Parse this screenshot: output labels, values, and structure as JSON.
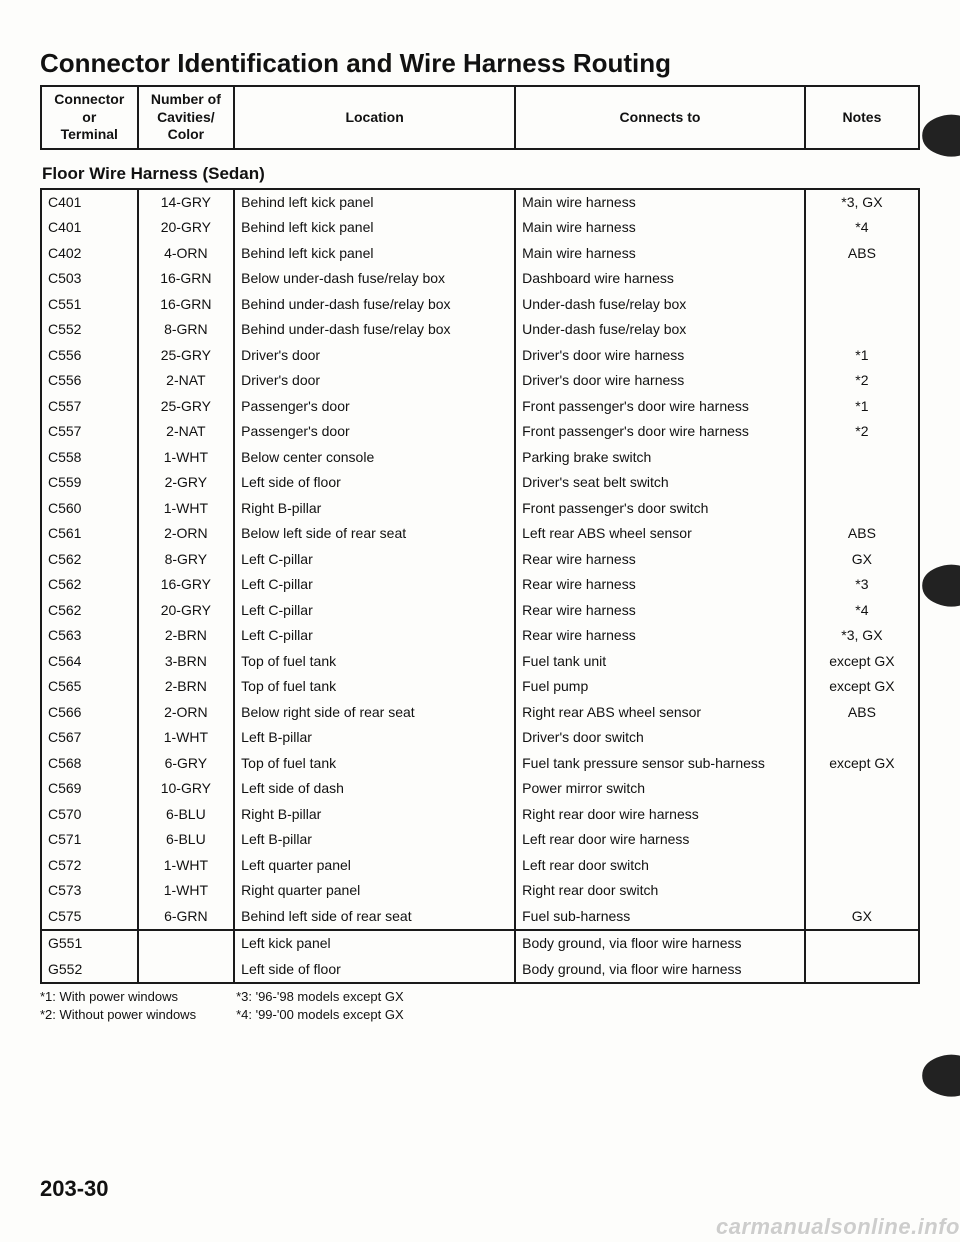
{
  "title": "Connector Identification and Wire Harness Routing",
  "header": {
    "col1": "Connector\nor\nTerminal",
    "col2": "Number of\nCavities/\nColor",
    "col3": "Location",
    "col4": "Connects to",
    "col5": "Notes"
  },
  "subheading": "Floor Wire Harness (Sedan)",
  "rowsA": [
    {
      "id": "C401",
      "cav": "14-GRY",
      "loc": "Behind left kick panel",
      "con": "Main wire harness",
      "note": "*3, GX"
    },
    {
      "id": "C401",
      "cav": "20-GRY",
      "loc": "Behind left kick panel",
      "con": "Main wire harness",
      "note": "*4"
    },
    {
      "id": "C402",
      "cav": "4-ORN",
      "loc": "Behind left kick panel",
      "con": "Main wire harness",
      "note": "ABS"
    },
    {
      "id": "C503",
      "cav": "16-GRN",
      "loc": "Below under-dash fuse/relay box",
      "con": "Dashboard wire harness",
      "note": ""
    },
    {
      "id": "C551",
      "cav": "16-GRN",
      "loc": "Behind under-dash fuse/relay box",
      "con": "Under-dash fuse/relay box",
      "note": ""
    },
    {
      "id": "C552",
      "cav": "8-GRN",
      "loc": "Behind under-dash fuse/relay box",
      "con": "Under-dash fuse/relay box",
      "note": ""
    },
    {
      "id": "C556",
      "cav": "25-GRY",
      "loc": "Driver's door",
      "con": "Driver's door wire harness",
      "note": "*1"
    },
    {
      "id": "C556",
      "cav": "2-NAT",
      "loc": "Driver's door",
      "con": "Driver's door wire harness",
      "note": "*2"
    },
    {
      "id": "C557",
      "cav": "25-GRY",
      "loc": "Passenger's door",
      "con": "Front passenger's door wire harness",
      "note": "*1"
    },
    {
      "id": "C557",
      "cav": "2-NAT",
      "loc": "Passenger's door",
      "con": "Front passenger's door wire harness",
      "note": "*2"
    },
    {
      "id": "C558",
      "cav": "1-WHT",
      "loc": "Below center console",
      "con": "Parking brake switch",
      "note": ""
    },
    {
      "id": "C559",
      "cav": "2-GRY",
      "loc": "Left side of floor",
      "con": "Driver's seat belt switch",
      "note": ""
    },
    {
      "id": "C560",
      "cav": "1-WHT",
      "loc": "Right B-pillar",
      "con": "Front passenger's door switch",
      "note": ""
    },
    {
      "id": "C561",
      "cav": "2-ORN",
      "loc": "Below left side of rear seat",
      "con": "Left rear ABS wheel sensor",
      "note": "ABS"
    },
    {
      "id": "C562",
      "cav": "8-GRY",
      "loc": "Left C-pillar",
      "con": "Rear wire harness",
      "note": "GX"
    },
    {
      "id": "C562",
      "cav": "16-GRY",
      "loc": "Left C-pillar",
      "con": "Rear wire harness",
      "note": "*3"
    },
    {
      "id": "C562",
      "cav": "20-GRY",
      "loc": "Left C-pillar",
      "con": "Rear wire harness",
      "note": "*4"
    },
    {
      "id": "C563",
      "cav": "2-BRN",
      "loc": "Left C-pillar",
      "con": "Rear wire harness",
      "note": "*3, GX"
    },
    {
      "id": "C564",
      "cav": "3-BRN",
      "loc": "Top of fuel tank",
      "con": "Fuel tank unit",
      "note": "except GX"
    },
    {
      "id": "C565",
      "cav": "2-BRN",
      "loc": "Top of fuel tank",
      "con": "Fuel pump",
      "note": "except GX"
    },
    {
      "id": "C566",
      "cav": "2-ORN",
      "loc": "Below right side of rear seat",
      "con": "Right rear ABS wheel sensor",
      "note": "ABS"
    },
    {
      "id": "C567",
      "cav": "1-WHT",
      "loc": "Left B-pillar",
      "con": "Driver's door switch",
      "note": ""
    },
    {
      "id": "C568",
      "cav": "6-GRY",
      "loc": "Top of fuel tank",
      "con": "Fuel tank pressure sensor sub-harness",
      "note": "except GX"
    },
    {
      "id": "C569",
      "cav": "10-GRY",
      "loc": "Left side of dash",
      "con": "Power mirror switch",
      "note": ""
    },
    {
      "id": "C570",
      "cav": "6-BLU",
      "loc": "Right B-pillar",
      "con": "Right rear door wire harness",
      "note": ""
    },
    {
      "id": "C571",
      "cav": "6-BLU",
      "loc": "Left B-pillar",
      "con": "Left rear door wire harness",
      "note": ""
    },
    {
      "id": "C572",
      "cav": "1-WHT",
      "loc": "Left quarter panel",
      "con": "Left rear door switch",
      "note": ""
    },
    {
      "id": "C573",
      "cav": "1-WHT",
      "loc": "Right quarter panel",
      "con": "Right rear door switch",
      "note": ""
    },
    {
      "id": "C575",
      "cav": "6-GRN",
      "loc": "Behind left side of rear seat",
      "con": "Fuel sub-harness",
      "note": "GX"
    }
  ],
  "rowsB": [
    {
      "id": "G551",
      "cav": "",
      "loc": "Left kick panel",
      "con": "Body ground, via floor wire harness",
      "note": ""
    },
    {
      "id": "G552",
      "cav": "",
      "loc": "Left side of floor",
      "con": "Body ground, via floor wire harness",
      "note": ""
    }
  ],
  "footnotes": {
    "left": [
      "*1: With power windows",
      "*2: Without power windows"
    ],
    "right": [
      "*3: '96-'98 models except GX",
      "*4: '99-'00 models except GX"
    ]
  },
  "pageNumber": "203-30",
  "watermark": "carmanualsonline.info"
}
